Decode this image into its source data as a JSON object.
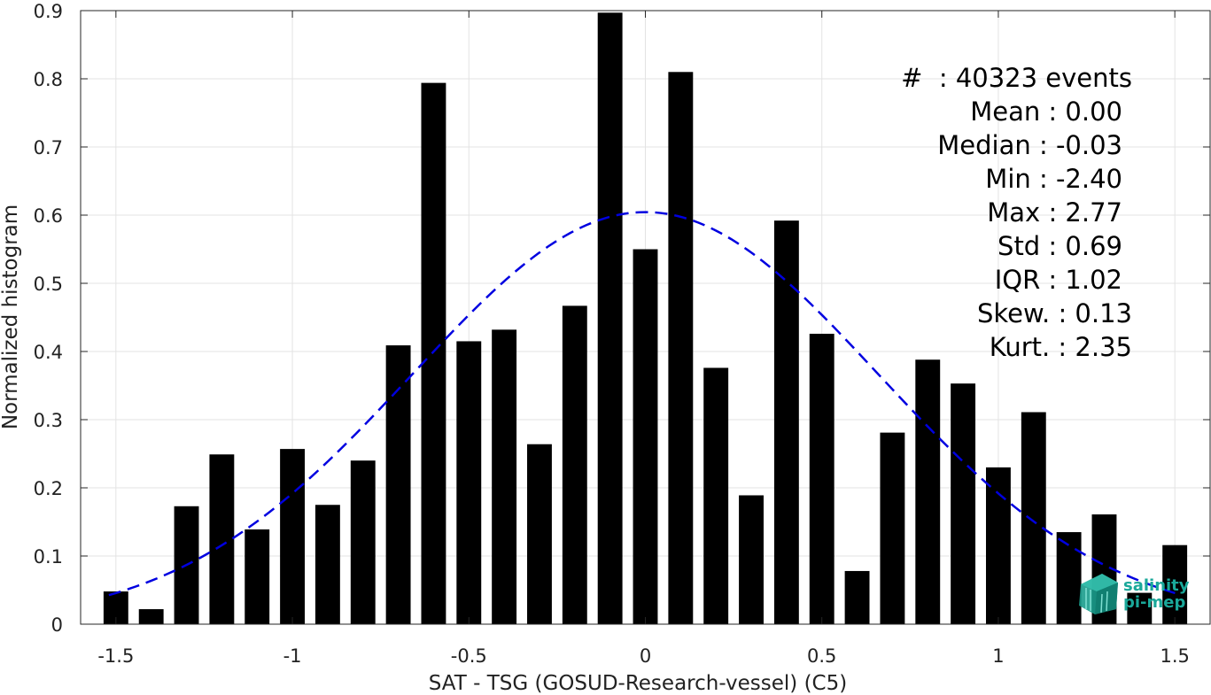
{
  "chart_data": {
    "type": "bar",
    "xlabel": "SAT - TSG (GOSUD-Research-vessel) (C5)",
    "ylabel": "Normalized histogram",
    "xlim": [
      -1.6,
      1.6
    ],
    "ylim": [
      0,
      0.9
    ],
    "grid": true,
    "x_ticks": [
      -1.5,
      -1,
      -0.5,
      0,
      0.5,
      1,
      1.5
    ],
    "x_tick_labels": [
      "-1.5",
      "-1",
      "-0.5",
      "0",
      "0.5",
      "1",
      "1.5"
    ],
    "y_ticks": [
      0,
      0.1,
      0.2,
      0.3,
      0.4,
      0.5,
      0.6,
      0.7,
      0.8,
      0.9
    ],
    "y_tick_labels": [
      "0",
      "0.1",
      "0.2",
      "0.3",
      "0.4",
      "0.5",
      "0.6",
      "0.7",
      "0.8",
      "0.9"
    ],
    "bar_width": 0.07,
    "bar_color": "#000000",
    "bars": [
      {
        "x": -1.5,
        "value": 0.048
      },
      {
        "x": -1.4,
        "value": 0.022
      },
      {
        "x": -1.3,
        "value": 0.173
      },
      {
        "x": -1.2,
        "value": 0.249
      },
      {
        "x": -1.1,
        "value": 0.139
      },
      {
        "x": -1.0,
        "value": 0.257
      },
      {
        "x": -0.9,
        "value": 0.175
      },
      {
        "x": -0.8,
        "value": 0.24
      },
      {
        "x": -0.7,
        "value": 0.409
      },
      {
        "x": -0.6,
        "value": 0.794
      },
      {
        "x": -0.5,
        "value": 0.415
      },
      {
        "x": -0.4,
        "value": 0.432
      },
      {
        "x": -0.3,
        "value": 0.264
      },
      {
        "x": -0.2,
        "value": 0.467
      },
      {
        "x": -0.1,
        "value": 0.897
      },
      {
        "x": 0.0,
        "value": 0.55
      },
      {
        "x": 0.1,
        "value": 0.81
      },
      {
        "x": 0.2,
        "value": 0.376
      },
      {
        "x": 0.3,
        "value": 0.189
      },
      {
        "x": 0.4,
        "value": 0.592
      },
      {
        "x": 0.5,
        "value": 0.426
      },
      {
        "x": 0.6,
        "value": 0.078
      },
      {
        "x": 0.7,
        "value": 0.281
      },
      {
        "x": 0.8,
        "value": 0.388
      },
      {
        "x": 0.9,
        "value": 0.353
      },
      {
        "x": 1.0,
        "value": 0.23
      },
      {
        "x": 1.1,
        "value": 0.311
      },
      {
        "x": 1.2,
        "value": 0.135
      },
      {
        "x": 1.3,
        "value": 0.161
      },
      {
        "x": 1.4,
        "value": 0.046
      },
      {
        "x": 1.5,
        "value": 0.116
      }
    ],
    "fit_curve": {
      "type": "gaussian",
      "style": "dashed",
      "color": "#0000e0",
      "mean": 0.0,
      "std": 0.66,
      "x_range": [
        -1.52,
        1.52
      ]
    },
    "stats_annotation": [
      {
        "label": "#  ",
        "value": "40323 events"
      },
      {
        "label": "Mean",
        "value": "0.00"
      },
      {
        "label": "Median",
        "value": "-0.03"
      },
      {
        "label": "Min",
        "value": "-2.40"
      },
      {
        "label": "Max",
        "value": "2.77"
      },
      {
        "label": "Std",
        "value": "0.69"
      },
      {
        "label": "IQR",
        "value": "1.02"
      },
      {
        "label": "Skew.",
        "value": "0.13"
      },
      {
        "label": "Kurt.",
        "value": "2.35"
      }
    ]
  },
  "stats_lines": {
    "count": "#  : 40323 events",
    "mean": "Mean : 0.00",
    "median": "Median : -0.03",
    "min": "Min : -2.40",
    "max": "Max : 2.77",
    "std": "Std : 0.69",
    "iqr": "IQR : 1.02",
    "skew": "Skew. : 0.13",
    "kurt": "Kurt. : 2.35"
  },
  "logo": {
    "line1": "salinity",
    "line2": "pi-mep",
    "color": "#1aa89a"
  }
}
